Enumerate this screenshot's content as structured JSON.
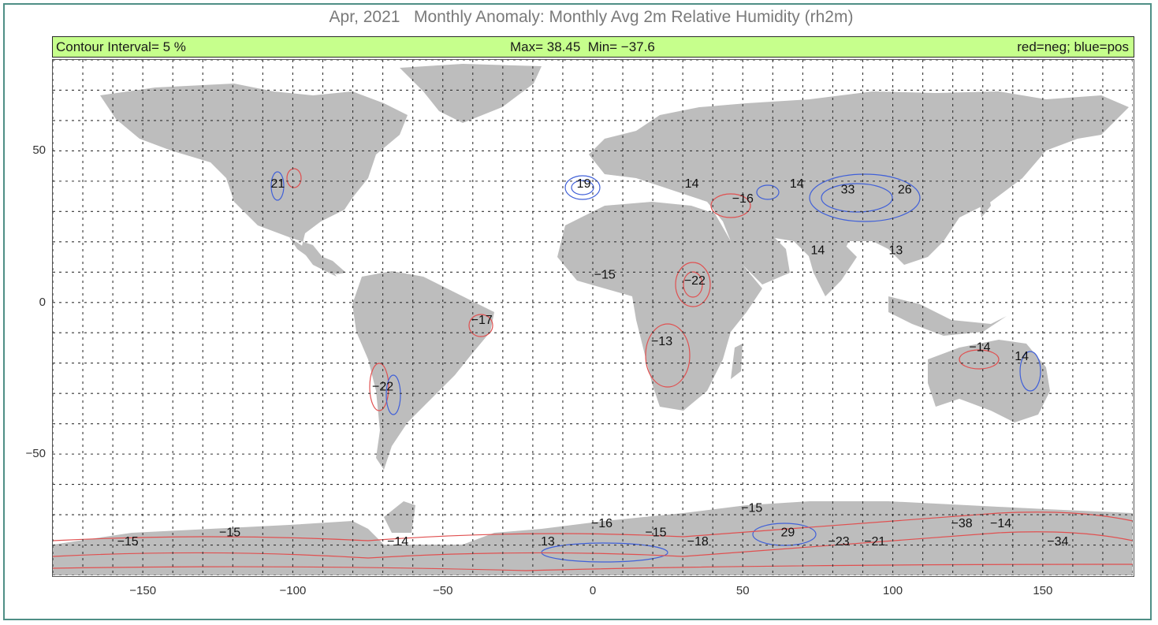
{
  "title": "Apr, 2021   Monthly Anomaly: Monthly Avg 2m Relative Humidity (rh2m)",
  "banner": {
    "left": "Contour Interval= 5 %",
    "middle": "Max= 38.45  Min= −37.6",
    "right": "red=neg; blue=pos"
  },
  "axes": {
    "x_ticks": [
      "−150",
      "−100",
      "−50",
      "0",
      "50",
      "100",
      "150"
    ],
    "y_ticks": [
      "50",
      "0",
      "−50"
    ]
  },
  "colors": {
    "land": "#bdbdbd",
    "negative": "#e05050",
    "positive": "#4060d8",
    "banner": "#c6ff8c",
    "grid": "#333333"
  },
  "contour_labels": [
    {
      "text": "21",
      "lon": -105,
      "lat": 39,
      "sign": "pos"
    },
    {
      "text": "19",
      "lon": -3,
      "lat": 39,
      "sign": "pos"
    },
    {
      "text": "14",
      "lon": 33,
      "lat": 39,
      "sign": "pos"
    },
    {
      "text": "−16",
      "lon": 50,
      "lat": 34,
      "sign": "neg"
    },
    {
      "text": "14",
      "lon": 68,
      "lat": 39,
      "sign": "pos"
    },
    {
      "text": "33",
      "lon": 85,
      "lat": 37,
      "sign": "pos"
    },
    {
      "text": "26",
      "lon": 104,
      "lat": 37,
      "sign": "pos"
    },
    {
      "text": "14",
      "lon": 75,
      "lat": 17,
      "sign": "pos"
    },
    {
      "text": "13",
      "lon": 101,
      "lat": 17,
      "sign": "pos"
    },
    {
      "text": "−15",
      "lon": 4,
      "lat": 9,
      "sign": "neg"
    },
    {
      "text": "−22",
      "lon": 34,
      "lat": 7,
      "sign": "neg"
    },
    {
      "text": "−17",
      "lon": -37,
      "lat": -6,
      "sign": "neg"
    },
    {
      "text": "−13",
      "lon": 23,
      "lat": -13,
      "sign": "neg"
    },
    {
      "text": "−22",
      "lon": -70,
      "lat": -28,
      "sign": "neg"
    },
    {
      "text": "−14",
      "lon": 129,
      "lat": -15,
      "sign": "neg"
    },
    {
      "text": "14",
      "lon": 143,
      "lat": -18,
      "sign": "pos"
    },
    {
      "text": "−15",
      "lon": 53,
      "lat": -68,
      "sign": "neg"
    },
    {
      "text": "−16",
      "lon": 3,
      "lat": -73,
      "sign": "neg"
    },
    {
      "text": "−15",
      "lon": -121,
      "lat": -76,
      "sign": "neg"
    },
    {
      "text": "−15",
      "lon": -155,
      "lat": -79,
      "sign": "neg"
    },
    {
      "text": "−14",
      "lon": -65,
      "lat": -79,
      "sign": "neg"
    },
    {
      "text": "13",
      "lon": -15,
      "lat": -79,
      "sign": "pos"
    },
    {
      "text": "−15",
      "lon": 21,
      "lat": -76,
      "sign": "neg"
    },
    {
      "text": "−18",
      "lon": 35,
      "lat": -79,
      "sign": "neg"
    },
    {
      "text": "29",
      "lon": 65,
      "lat": -76,
      "sign": "pos"
    },
    {
      "text": "−23",
      "lon": 82,
      "lat": -79,
      "sign": "neg"
    },
    {
      "text": "−21",
      "lon": 94,
      "lat": -79,
      "sign": "neg"
    },
    {
      "text": "−38",
      "lon": 123,
      "lat": -73,
      "sign": "neg"
    },
    {
      "text": "−14",
      "lon": 136,
      "lat": -73,
      "sign": "neg"
    },
    {
      "text": "−34",
      "lon": 155,
      "lat": -79,
      "sign": "neg"
    }
  ]
}
